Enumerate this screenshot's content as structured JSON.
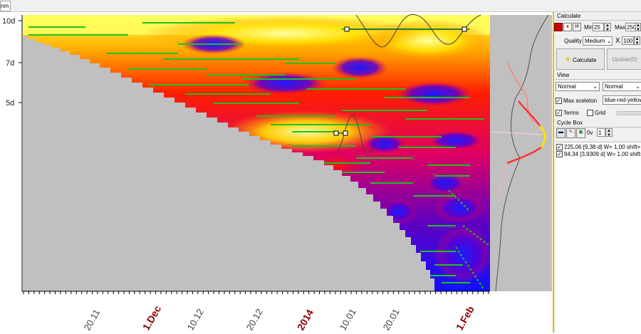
{
  "topbar": {
    "tab_fragment": "nm"
  },
  "chart": {
    "y_labels": [
      "10d",
      "7d",
      "5d"
    ],
    "x_labels": [
      {
        "text": "20.11",
        "color": "#404040",
        "bold": false
      },
      {
        "text": "1.Dec",
        "color": "#8b0000",
        "bold": true
      },
      {
        "text": "10.12",
        "color": "#404040",
        "bold": false
      },
      {
        "text": "20.12",
        "color": "#404040",
        "bold": false
      },
      {
        "text": "2014",
        "color": "#8b0000",
        "bold": true
      },
      {
        "text": "10.01",
        "color": "#404040",
        "bold": false
      },
      {
        "text": "20.01",
        "color": "#404040",
        "bold": false
      },
      {
        "text": "1.Feb",
        "color": "#8b0000",
        "bold": true
      }
    ]
  },
  "panel": {
    "calculate_section": "Calculate",
    "h_label": "H",
    "min_label": "Min",
    "min_value": "25",
    "max_label": "Max",
    "max_value": "250",
    "quality_label": "Quality",
    "quality_value": "Medium",
    "x_label": "X",
    "x_value": "100",
    "calculate_button": "Calculate",
    "update_button": "Update(0)",
    "view_section": "View",
    "view_select_1": "Normal",
    "view_select_2": "Normal",
    "max_skeleton_label": "Max sceleton",
    "color_scheme": "blue-red-yellow",
    "terms_label": "Terms",
    "grid_label": "Grid",
    "cycle_box_section": "Cycle Box",
    "ov_label": "0v",
    "ov_value": "1",
    "cycles": [
      "225,06 [9,38 d]  W= 1,00  shift=",
      "94,34 [3,9309 d]  W= 1,00  shift="
    ]
  }
}
